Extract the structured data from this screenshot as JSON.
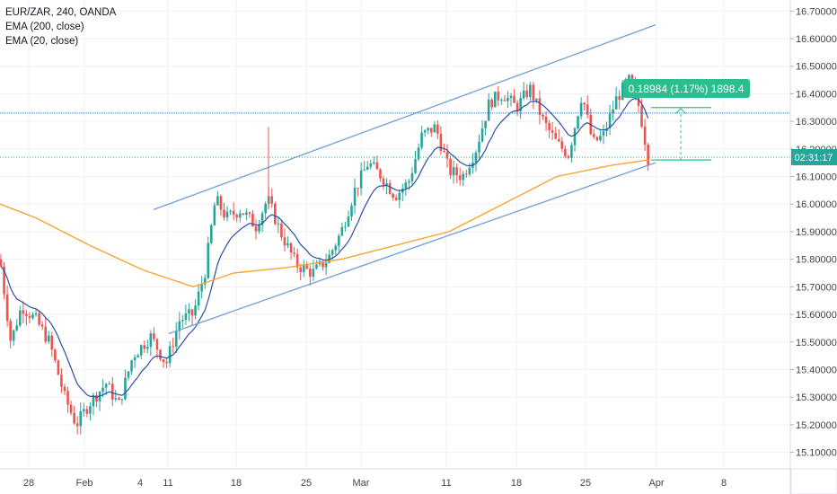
{
  "legend": {
    "symbol": "EUR/ZAR, 240, OANDA",
    "ema200": "EMA (200, close)",
    "ema20": "EMA (20, close)"
  },
  "measure_label": "0.18984 (1.17%) 1898.4",
  "current_time_label": "02:31:17",
  "colors": {
    "up": "#26a69a",
    "down": "#ef5350",
    "ema200": "#f7a531",
    "ema20": "#2a4ea8",
    "channel": "#6f9ed8",
    "hline": "#3a74b0",
    "measure": "#2bbf8f",
    "price_badge": "#26a69a"
  },
  "chart_data": {
    "type": "candlestick",
    "title": "EUR/ZAR, 240, OANDA",
    "series": [
      {
        "name": "EMA (200, close)"
      },
      {
        "name": "EMA (20, close)"
      }
    ],
    "y_ticks": [
      "16.70000",
      "16.60000",
      "16.50000",
      "16.40000",
      "16.30000",
      "16.20000",
      "16.10000",
      "16.00000",
      "15.90000",
      "15.80000",
      "15.70000",
      "15.60000",
      "15.50000",
      "15.40000",
      "15.30000",
      "15.20000",
      "15.10000"
    ],
    "x_ticks": [
      "28",
      "Feb",
      "4",
      "11",
      "18",
      "25",
      "Mar",
      "11",
      "18",
      "25",
      "Apr",
      "8"
    ],
    "ylim": [
      15.04,
      16.74
    ],
    "grid": true,
    "horizontal_line": 16.33,
    "current_price": 16.17,
    "channel": {
      "upper": [
        {
          "x": "Feb 1",
          "y": 15.98
        },
        {
          "x": "Mar 31",
          "y": 16.65
        }
      ],
      "lower": [
        {
          "x": "Feb 11",
          "y": 15.55
        },
        {
          "x": "Mar 31",
          "y": 16.15
        }
      ]
    },
    "measure": {
      "from": 16.16,
      "to": 16.35
    }
  }
}
